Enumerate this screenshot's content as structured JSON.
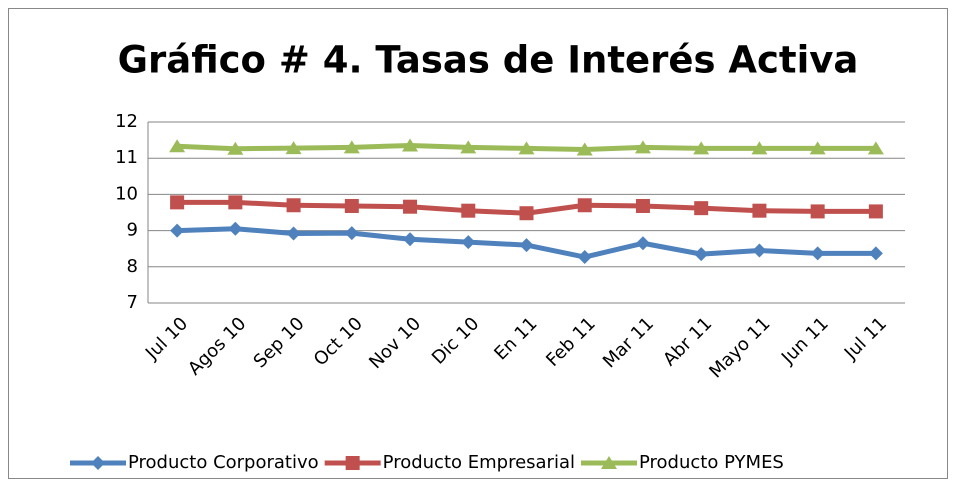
{
  "chart_data": {
    "type": "line",
    "title": "Gráfico # 4.  Tasas de Interés Activa",
    "categories": [
      "Jul 10",
      "Agos 10",
      "Sep 10",
      "Oct 10",
      "Nov 10",
      "Dic 10",
      "En 11",
      "Feb 11",
      "Mar 11",
      "Abr 11",
      "Mayo 11",
      "Jun 11",
      "Jul 11"
    ],
    "series": [
      {
        "name": "Producto Corporativo",
        "color": "#4f81bd",
        "marker": "diamond",
        "values": [
          9.0,
          9.05,
          8.92,
          8.93,
          8.76,
          8.68,
          8.6,
          8.27,
          8.65,
          8.35,
          8.45,
          8.37,
          8.37
        ]
      },
      {
        "name": "Producto Empresarial",
        "color": "#c0504d",
        "marker": "square",
        "values": [
          9.78,
          9.78,
          9.7,
          9.68,
          9.66,
          9.55,
          9.48,
          9.7,
          9.68,
          9.62,
          9.55,
          9.53,
          9.53
        ]
      },
      {
        "name": "Producto PYMES",
        "color": "#9bbb59",
        "marker": "triangle",
        "values": [
          11.33,
          11.26,
          11.28,
          11.3,
          11.35,
          11.3,
          11.27,
          11.24,
          11.3,
          11.27,
          11.27,
          11.27,
          11.27
        ]
      }
    ],
    "ylim": [
      7,
      12
    ],
    "yticks": [
      7,
      8,
      9,
      10,
      11,
      12
    ],
    "grid": true,
    "legend": "bottom"
  }
}
